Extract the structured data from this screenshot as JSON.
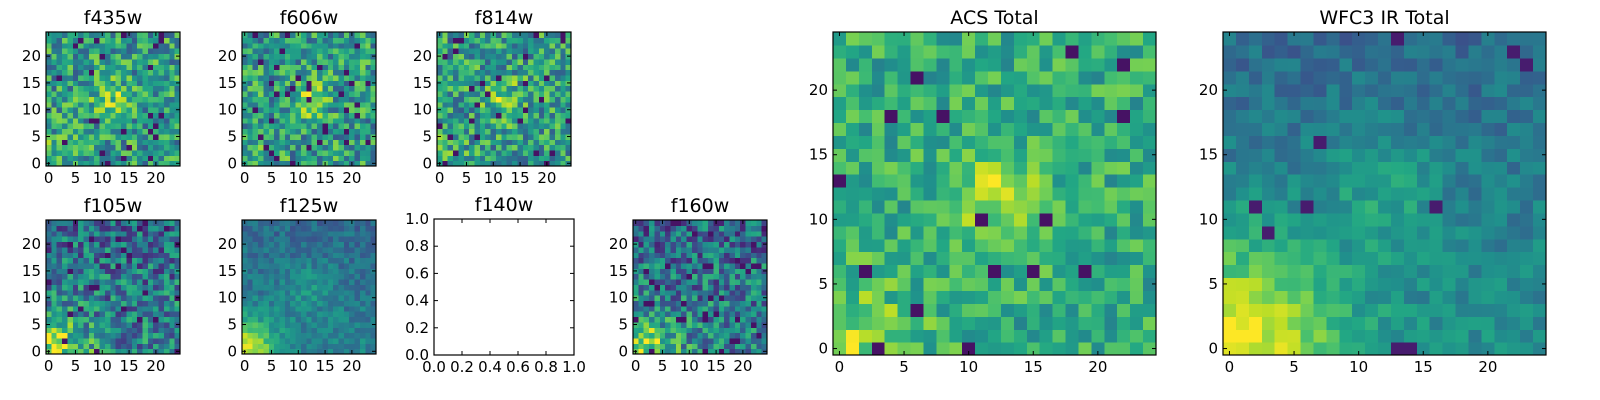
{
  "chart_data": [
    {
      "type": "heatmap",
      "title": "f435w",
      "colormap": "viridis",
      "seed": 11,
      "kind": "noisy",
      "grid": false,
      "xlim": [
        0,
        24
      ],
      "ylim": [
        0,
        24
      ],
      "xticks": [
        "0",
        "5",
        "10",
        "15",
        "20"
      ],
      "yticks": [
        "0",
        "5",
        "10",
        "15",
        "20"
      ],
      "origin": "lower"
    },
    {
      "type": "heatmap",
      "title": "f606w",
      "colormap": "viridis",
      "seed": 23,
      "kind": "noisy",
      "grid": false,
      "xlim": [
        0,
        24
      ],
      "ylim": [
        0,
        24
      ],
      "xticks": [
        "0",
        "5",
        "10",
        "15",
        "20"
      ],
      "yticks": [
        "0",
        "5",
        "10",
        "15",
        "20"
      ],
      "origin": "lower"
    },
    {
      "type": "heatmap",
      "title": "f814w",
      "colormap": "viridis",
      "seed": 37,
      "kind": "noisy",
      "grid": false,
      "xlim": [
        0,
        24
      ],
      "ylim": [
        0,
        24
      ],
      "xticks": [
        "0",
        "5",
        "10",
        "15",
        "20"
      ],
      "yticks": [
        "0",
        "5",
        "10",
        "15",
        "20"
      ],
      "origin": "lower"
    },
    {
      "type": "heatmap",
      "title": "f105w",
      "colormap": "viridis",
      "seed": 41,
      "kind": "ir",
      "grid": false,
      "xlim": [
        0,
        24
      ],
      "ylim": [
        0,
        24
      ],
      "xticks": [
        "0",
        "5",
        "10",
        "15",
        "20"
      ],
      "yticks": [
        "0",
        "5",
        "10",
        "15",
        "20"
      ],
      "origin": "lower"
    },
    {
      "type": "heatmap",
      "title": "f125w",
      "colormap": "viridis",
      "seed": 53,
      "kind": "smooth",
      "grid": false,
      "xlim": [
        0,
        24
      ],
      "ylim": [
        0,
        24
      ],
      "xticks": [
        "0",
        "5",
        "10",
        "15",
        "20"
      ],
      "yticks": [
        "0",
        "5",
        "10",
        "15",
        "20"
      ],
      "origin": "lower"
    },
    {
      "type": "empty",
      "title": "f140w",
      "grid": false,
      "xlim": [
        0,
        1
      ],
      "ylim": [
        0,
        1
      ],
      "xticks": [
        "0.0",
        "0.2",
        "0.4",
        "0.6",
        "0.8",
        "1.0"
      ],
      "yticks": [
        "0.0",
        "0.2",
        "0.4",
        "0.6",
        "0.8",
        "1.0"
      ]
    },
    {
      "type": "heatmap",
      "title": "f160w",
      "colormap": "viridis",
      "seed": 67,
      "kind": "ir",
      "grid": false,
      "xlim": [
        0,
        24
      ],
      "ylim": [
        0,
        24
      ],
      "xticks": [
        "0",
        "5",
        "10",
        "15",
        "20"
      ],
      "yticks": [
        "0",
        "5",
        "10",
        "15",
        "20"
      ],
      "origin": "lower"
    },
    {
      "type": "heatmap",
      "title": "ACS Total",
      "colormap": "viridis",
      "seed": 79,
      "kind": "total",
      "grid": false,
      "xlim": [
        0,
        24
      ],
      "ylim": [
        0,
        24
      ],
      "xticks": [
        "0",
        "5",
        "10",
        "15",
        "20"
      ],
      "yticks": [
        "0",
        "5",
        "10",
        "15",
        "20"
      ],
      "origin": "lower"
    },
    {
      "type": "heatmap",
      "title": "WFC3 IR Total",
      "colormap": "viridis",
      "seed": 97,
      "kind": "wfc",
      "grid": false,
      "xlim": [
        0,
        24
      ],
      "ylim": [
        0,
        24
      ],
      "xticks": [
        "0",
        "5",
        "10",
        "15",
        "20"
      ],
      "yticks": [
        "0",
        "5",
        "10",
        "15",
        "20"
      ],
      "origin": "lower"
    }
  ]
}
